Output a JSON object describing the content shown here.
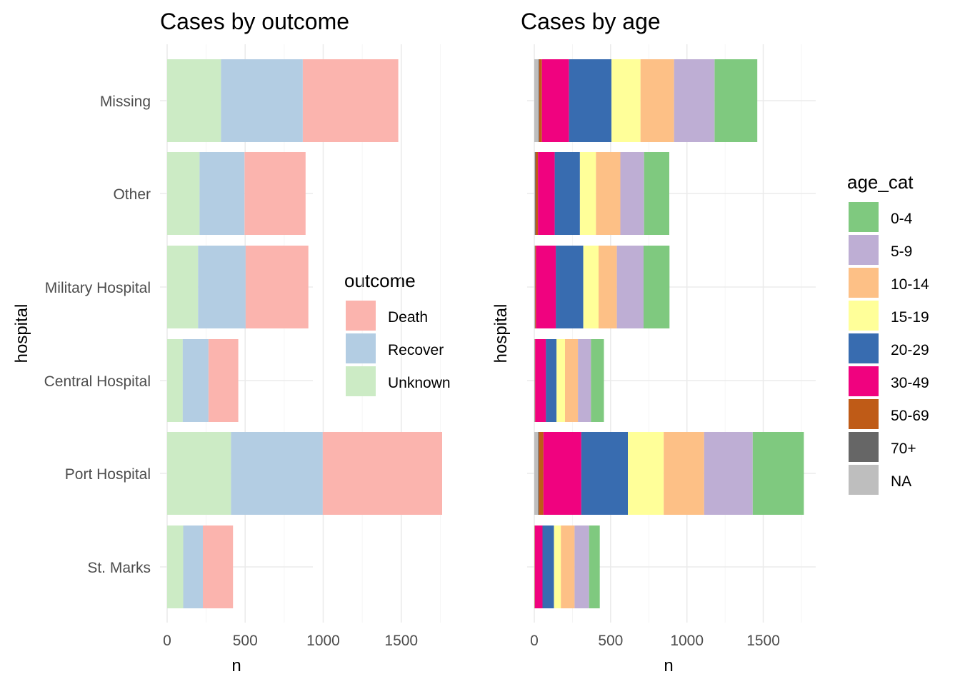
{
  "chart_data": [
    {
      "type": "bar",
      "orientation": "horizontal",
      "stacked": true,
      "title": "Cases by outcome",
      "xlabel": "n",
      "ylabel": "hospital",
      "categories": [
        "Missing",
        "Other",
        "Military Hospital",
        "Central Hospital",
        "Port Hospital",
        "St. Marks"
      ],
      "xlim": [
        0,
        1890
      ],
      "xticks": [
        0,
        500,
        1000,
        1500
      ],
      "xtick_labels": [
        "0",
        "500",
        "1000",
        "1500"
      ],
      "grid": true,
      "legend": {
        "title": "outcome",
        "placement": "right"
      },
      "series": [
        {
          "name": "Unknown",
          "color": "#CCEBC5",
          "values": [
            345,
            208,
            198,
            100,
            409,
            103
          ]
        },
        {
          "name": "Recover",
          "color": "#B3CDE3",
          "values": [
            524,
            288,
            305,
            165,
            588,
            126
          ]
        },
        {
          "name": "Death",
          "color": "#FBB4AE",
          "values": [
            612,
            391,
            402,
            191,
            765,
            193
          ]
        }
      ]
    },
    {
      "type": "bar",
      "orientation": "horizontal",
      "stacked": true,
      "title": "Cases by age",
      "xlabel": "n",
      "ylabel": "hospital",
      "categories": [
        "Missing",
        "Other",
        "Military Hospital",
        "Central Hospital",
        "Port Hospital",
        "St. Marks"
      ],
      "xlim": [
        0,
        1800
      ],
      "xticks": [
        0,
        500,
        1000,
        1500
      ],
      "xtick_labels": [
        "0",
        "500",
        "1000",
        "1500"
      ],
      "grid": true,
      "legend": {
        "title": "age_cat",
        "placement": "right"
      },
      "series": [
        {
          "name": "NA",
          "color": "#BEBEBE",
          "values": [
            28,
            5,
            4,
            2,
            25,
            1
          ]
        },
        {
          "name": "70+",
          "color": "#666666",
          "values": [
            4,
            4,
            2,
            2,
            5,
            1
          ]
        },
        {
          "name": "50-69",
          "color": "#BF5B17",
          "values": [
            18,
            15,
            5,
            2,
            30,
            2
          ]
        },
        {
          "name": "30-49",
          "color": "#F0027F",
          "values": [
            178,
            110,
            130,
            70,
            248,
            50
          ]
        },
        {
          "name": "20-29",
          "color": "#386CB0",
          "values": [
            278,
            165,
            180,
            70,
            305,
            75
          ]
        },
        {
          "name": "15-19",
          "color": "#FFFF99",
          "values": [
            190,
            105,
            100,
            55,
            235,
            45
          ]
        },
        {
          "name": "10-14",
          "color": "#FDC086",
          "values": [
            220,
            160,
            120,
            85,
            265,
            90
          ]
        },
        {
          "name": "5-9",
          "color": "#BEAED4",
          "values": [
            265,
            155,
            175,
            85,
            318,
            95
          ]
        },
        {
          "name": "0-4",
          "color": "#7FC97F",
          "values": [
            280,
            165,
            170,
            85,
            335,
            70
          ]
        }
      ]
    }
  ],
  "legend_order": {
    "outcome": [
      "Death",
      "Recover",
      "Unknown"
    ],
    "age_cat": [
      "0-4",
      "5-9",
      "10-14",
      "15-19",
      "20-29",
      "30-49",
      "50-69",
      "70+",
      "NA"
    ]
  }
}
